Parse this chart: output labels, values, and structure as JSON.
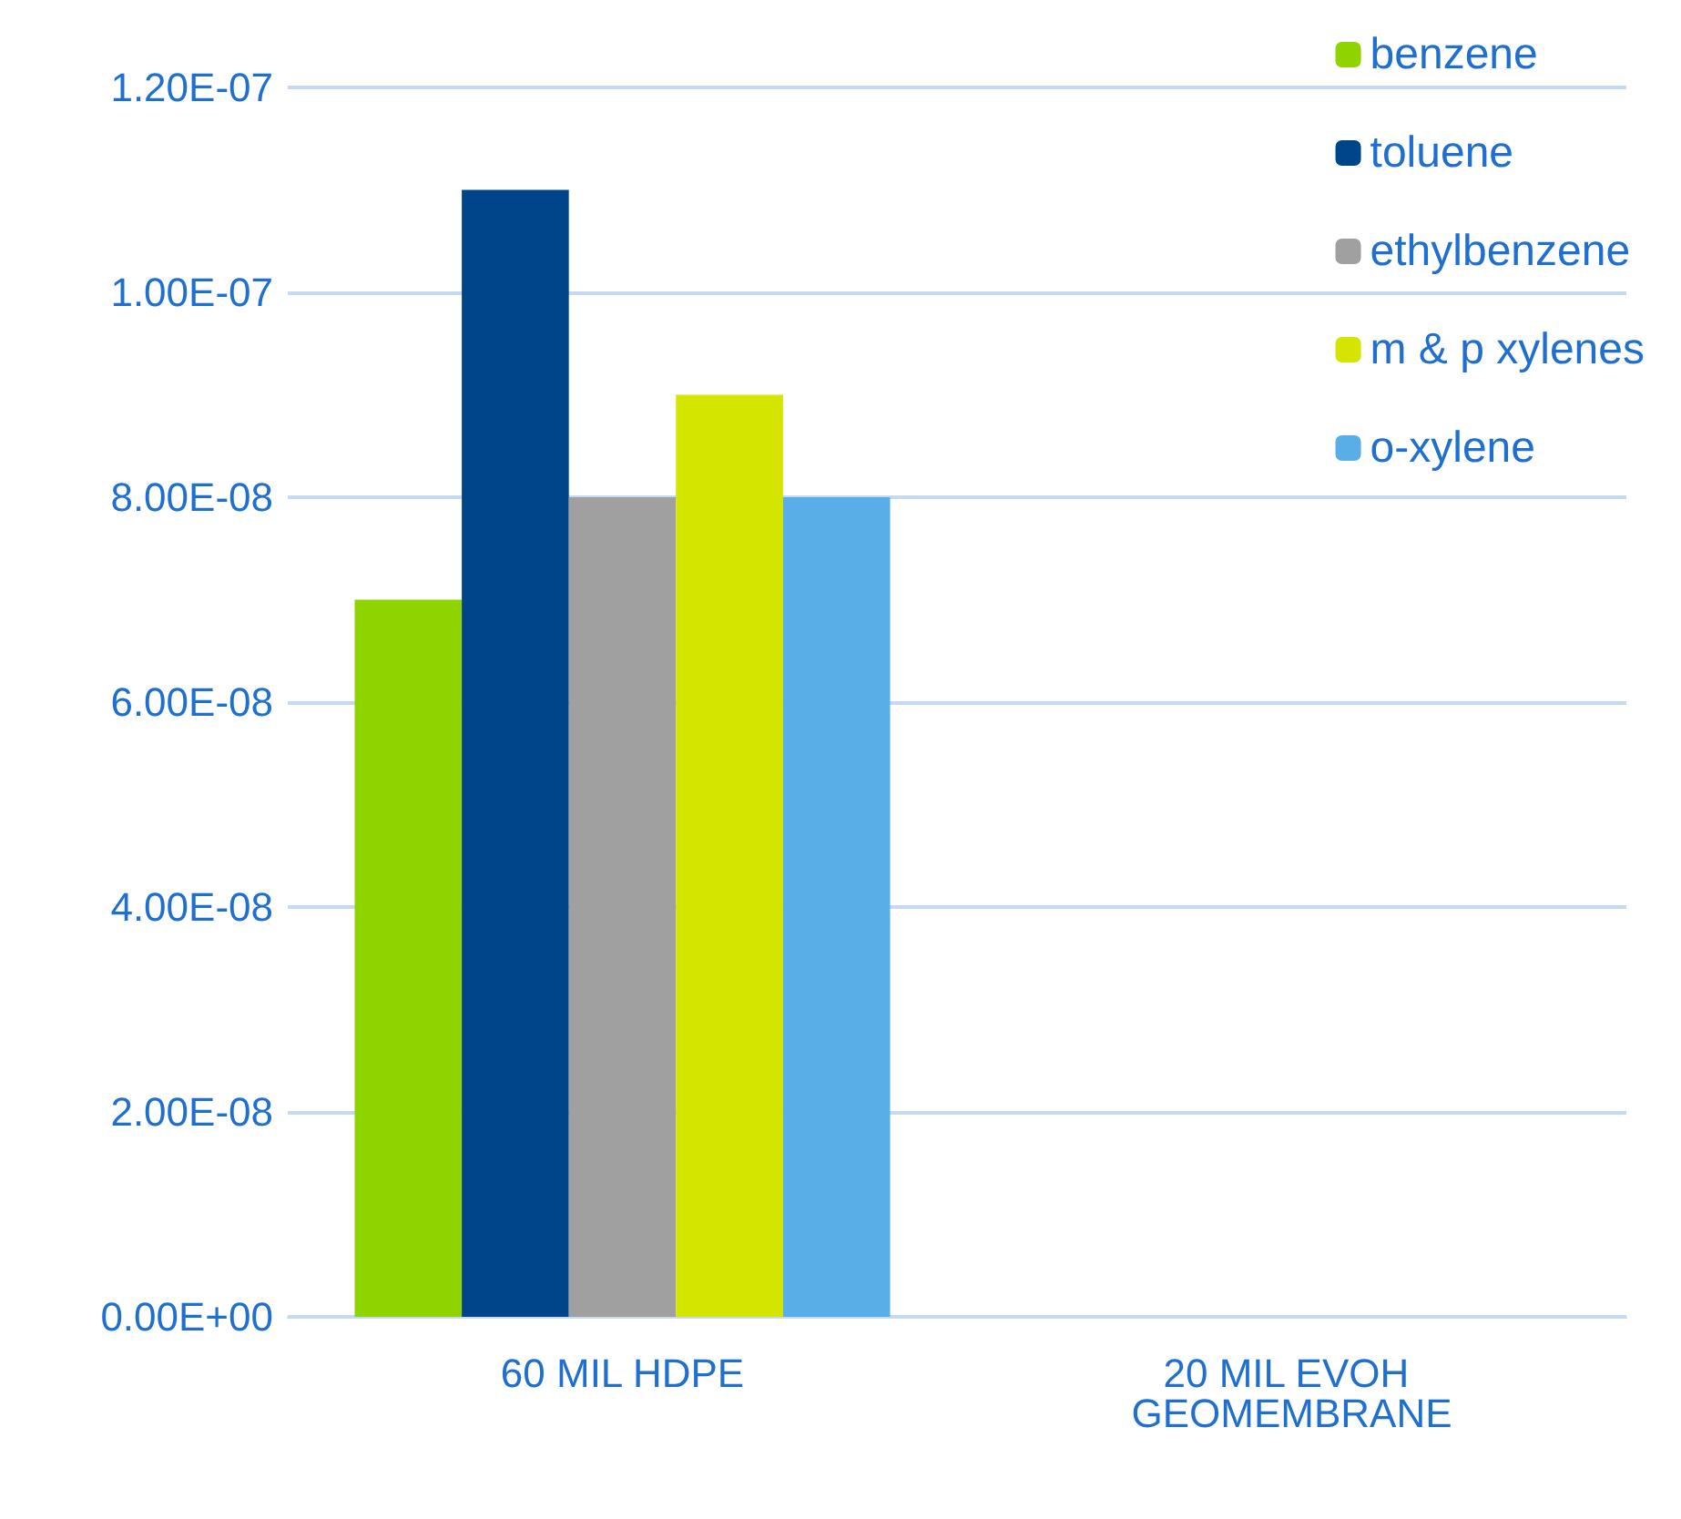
{
  "chart_data": {
    "type": "bar",
    "categories": [
      "60 MIL HDPE",
      "20 MIL EVOH GEOMEMBRANE"
    ],
    "series": [
      {
        "name": "benzene",
        "color": "#8fd400",
        "values": [
          7e-08,
          0
        ]
      },
      {
        "name": "toluene",
        "color": "#00458a",
        "values": [
          1.1e-07,
          0
        ]
      },
      {
        "name": "ethylbenzene",
        "color": "#a0a0a0",
        "values": [
          8e-08,
          0
        ]
      },
      {
        "name": "m & p xylenes",
        "color": "#d4e600",
        "values": [
          9e-08,
          0
        ]
      },
      {
        "name": "o-xylene",
        "color": "#5aaee8",
        "values": [
          8e-08,
          0
        ]
      }
    ],
    "ylim": [
      0,
      1.2e-07
    ],
    "yticks": [
      {
        "value": 0,
        "label": "0.00E+00"
      },
      {
        "value": 2e-08,
        "label": "2.00E-08"
      },
      {
        "value": 4e-08,
        "label": "4.00E-08"
      },
      {
        "value": 6e-08,
        "label": "6.00E-08"
      },
      {
        "value": 8e-08,
        "label": "8.00E-08"
      },
      {
        "value": 1e-07,
        "label": "1.00E-07"
      },
      {
        "value": 1.2e-07,
        "label": "1.20E-07"
      }
    ],
    "grid": "y",
    "legend": "top right"
  }
}
